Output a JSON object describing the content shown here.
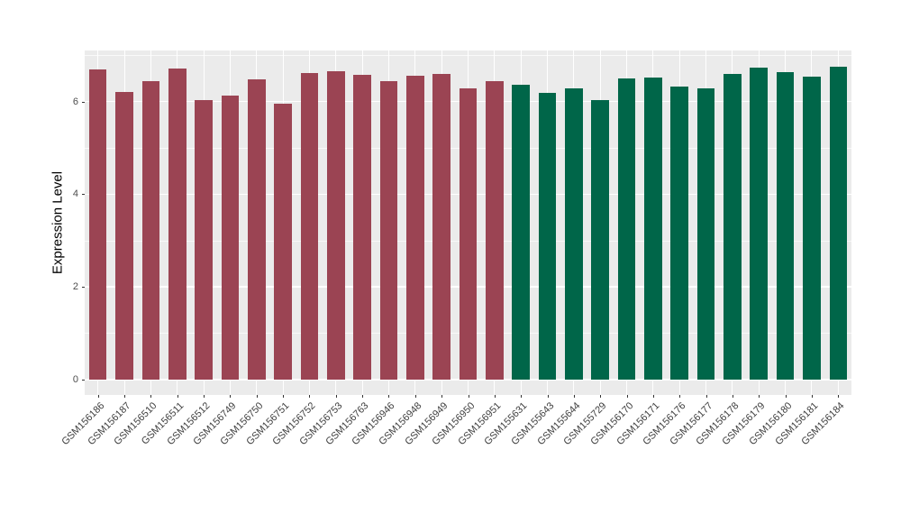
{
  "figure": {
    "ylabel": "Expression Level"
  },
  "chart_data": {
    "type": "bar",
    "title": "",
    "xlabel": "",
    "ylabel": "Expression Level",
    "ylim": [
      -0.34,
      7.11
    ],
    "yticks": [
      0,
      2,
      4,
      6
    ],
    "yticks_minor": [
      1,
      3,
      5,
      7
    ],
    "grid": "ggplot-style: grey panel #EBEBEB, white major+minor gridlines, vertical gridline at each category",
    "legend_position": "none",
    "panel_background": "#EBEBEB",
    "categories": [
      "GSM156186",
      "GSM156187",
      "GSM156510",
      "GSM156511",
      "GSM156512",
      "GSM156749",
      "GSM156750",
      "GSM156751",
      "GSM156752",
      "GSM156753",
      "GSM156763",
      "GSM156946",
      "GSM156948",
      "GSM156949",
      "GSM156950",
      "GSM156951",
      "GSM155631",
      "GSM155643",
      "GSM155644",
      "GSM155729",
      "GSM156170",
      "GSM156171",
      "GSM156176",
      "GSM156177",
      "GSM156178",
      "GSM156179",
      "GSM156180",
      "GSM156181",
      "GSM156184"
    ],
    "values": [
      6.69,
      6.2,
      6.43,
      6.71,
      6.04,
      6.13,
      6.48,
      5.96,
      6.62,
      6.66,
      6.57,
      6.43,
      6.55,
      6.59,
      6.28,
      6.44,
      6.36,
      6.18,
      6.29,
      6.04,
      6.5,
      6.51,
      6.33,
      6.28,
      6.6,
      6.74,
      6.64,
      6.53,
      6.76
    ],
    "bar_group_index": [
      0,
      0,
      0,
      0,
      0,
      0,
      0,
      0,
      0,
      0,
      0,
      0,
      0,
      0,
      0,
      0,
      1,
      1,
      1,
      1,
      1,
      1,
      1,
      1,
      1,
      1,
      1,
      1,
      1
    ],
    "groups": [
      {
        "name": "group-red",
        "color": "#9B4453"
      },
      {
        "name": "group-green",
        "color": "#006649"
      }
    ]
  }
}
